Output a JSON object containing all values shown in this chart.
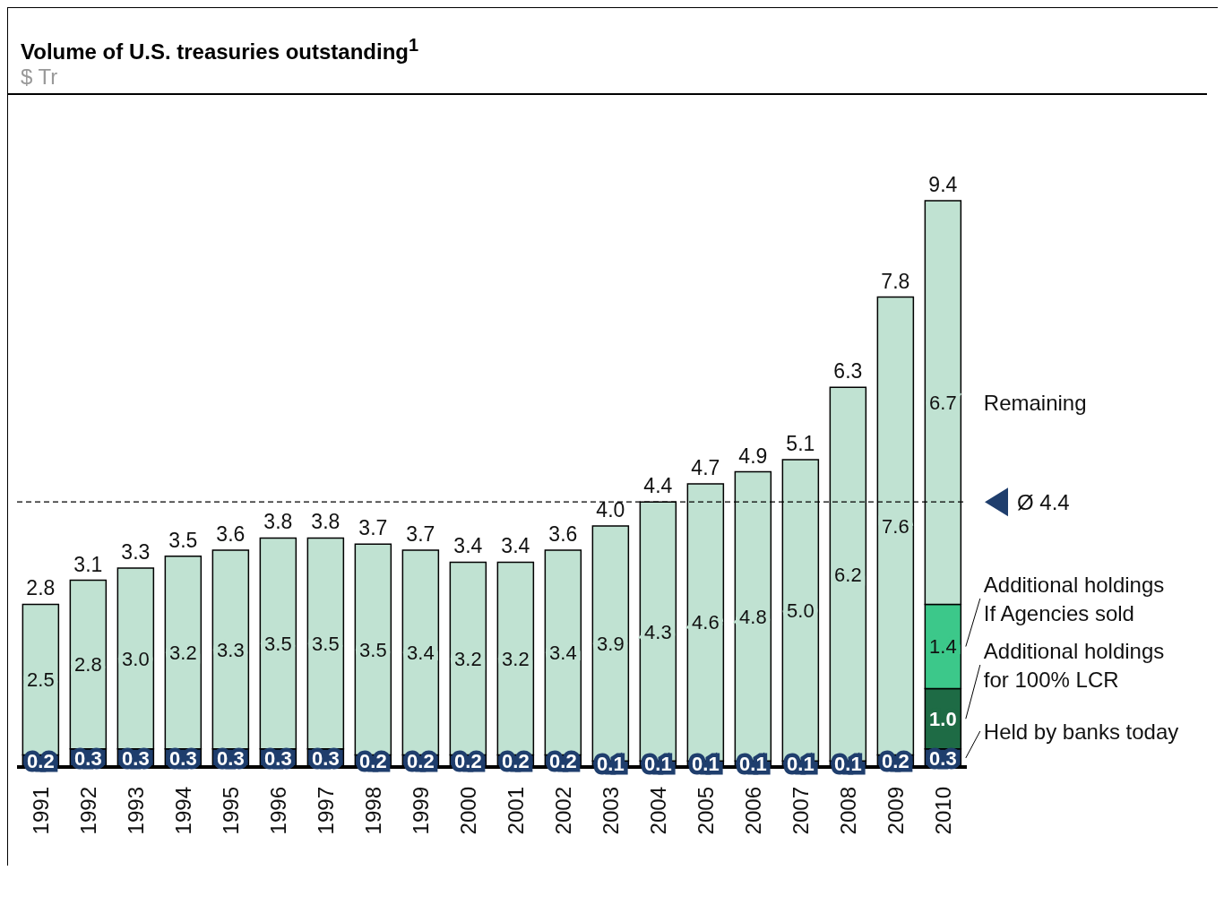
{
  "chart_data": {
    "type": "bar",
    "title": "Volume of U.S. treasuries outstanding$^{1}$",
    "subtitle": "$ Tr",
    "stacked": true,
    "legend": "right",
    "categories": [
      "1991",
      "1992",
      "1993",
      "1994",
      "1995",
      "1996",
      "1997",
      "1998",
      "1999",
      "2000",
      "2001",
      "2002",
      "2003",
      "2004",
      "2005",
      "2006",
      "2007",
      "2008",
      "2009",
      "2010"
    ],
    "series": [
      {
        "name": "Held by banks today",
        "color": "#1f3e6d",
        "values": [
          0.2,
          0.3,
          0.3,
          0.3,
          0.3,
          0.3,
          0.3,
          0.2,
          0.2,
          0.2,
          0.2,
          0.2,
          0.1,
          0.1,
          0.1,
          0.1,
          0.1,
          0.1,
          0.2,
          0.3
        ],
        "value_labels": [
          "0.2",
          "0.3",
          "0.3",
          "0.3",
          "0.3",
          "0.3",
          "0.3",
          "0.2",
          "0.2",
          "0.2",
          "0.2",
          "0.2",
          "0.1",
          "0.1",
          "0.1",
          "0.1",
          "0.1",
          "0.1",
          "0.2",
          "0.3"
        ]
      },
      {
        "name": "Additional holdings for 100% LCR",
        "color": "#1e6b45",
        "values": [
          null,
          null,
          null,
          null,
          null,
          null,
          null,
          null,
          null,
          null,
          null,
          null,
          null,
          null,
          null,
          null,
          null,
          null,
          null,
          1.0
        ],
        "value_labels": [
          null,
          null,
          null,
          null,
          null,
          null,
          null,
          null,
          null,
          null,
          null,
          null,
          null,
          null,
          null,
          null,
          null,
          null,
          null,
          "1.0"
        ]
      },
      {
        "name": "Additional holdings If Agencies sold",
        "color": "#3cc88a",
        "values": [
          null,
          null,
          null,
          null,
          null,
          null,
          null,
          null,
          null,
          null,
          null,
          null,
          null,
          null,
          null,
          null,
          null,
          null,
          null,
          1.4
        ],
        "value_labels": [
          null,
          null,
          null,
          null,
          null,
          null,
          null,
          null,
          null,
          null,
          null,
          null,
          null,
          null,
          null,
          null,
          null,
          null,
          null,
          "1.4"
        ]
      },
      {
        "name": "Remaining",
        "color": "#c0e2d2",
        "values": [
          2.5,
          2.8,
          3.0,
          3.2,
          3.3,
          3.5,
          3.5,
          3.5,
          3.4,
          3.2,
          3.2,
          3.4,
          3.9,
          4.3,
          4.6,
          4.8,
          5.0,
          6.2,
          7.6,
          6.7
        ],
        "value_labels": [
          "2.5",
          "2.8",
          "3.0",
          "3.2",
          "3.3",
          "3.5",
          "3.5",
          "3.5",
          "3.4",
          "3.2",
          "3.2",
          "3.4",
          "3.9",
          "4.3",
          "4.6",
          "4.8",
          "5.0",
          "6.2",
          "7.6",
          "6.7"
        ]
      }
    ],
    "totals": [
      "2.8",
      "3.1",
      "3.3",
      "3.5",
      "3.6",
      "3.8",
      "3.8",
      "3.7",
      "3.7",
      "3.4",
      "3.4",
      "3.6",
      "4.0",
      "4.4",
      "4.7",
      "4.9",
      "5.1",
      "6.3",
      "7.8",
      "9.4"
    ],
    "ref_lines": [
      {
        "axis": "y",
        "value": 4.4,
        "label": "Ø 4.4",
        "line_style": "dashed",
        "color": "#000000"
      }
    ]
  }
}
